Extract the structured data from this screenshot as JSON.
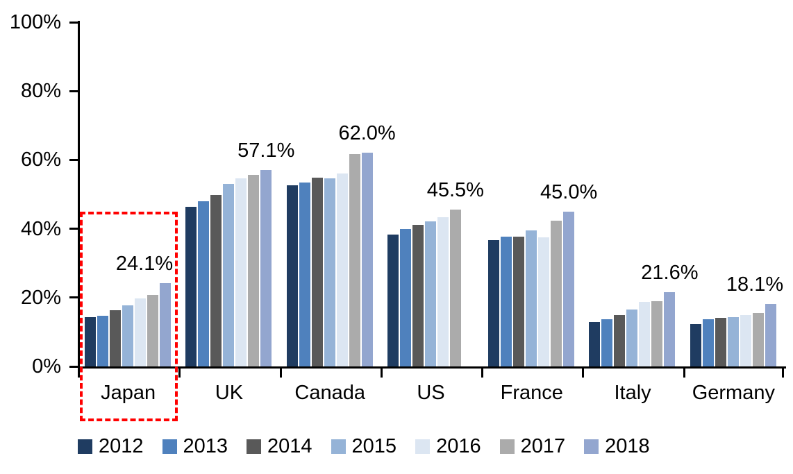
{
  "chart_data": {
    "type": "bar",
    "title": "",
    "xlabel": "",
    "ylabel": "",
    "categories": [
      "Japan",
      "UK",
      "Canada",
      "US",
      "France",
      "Italy",
      "Germany"
    ],
    "series": [
      {
        "name": "2012",
        "color": "#1F3C61",
        "values": [
          14.4,
          46.3,
          52.7,
          38.3,
          36.7,
          13.0,
          12.3
        ]
      },
      {
        "name": "2013",
        "color": "#4F81BD",
        "values": [
          14.7,
          48.0,
          53.4,
          40.0,
          37.8,
          13.8,
          13.8
        ]
      },
      {
        "name": "2014",
        "color": "#595959",
        "values": [
          16.4,
          49.8,
          54.9,
          41.1,
          37.8,
          15.0,
          14.1
        ]
      },
      {
        "name": "2015",
        "color": "#95B3D7",
        "values": [
          17.7,
          53.0,
          54.6,
          42.1,
          39.5,
          16.6,
          14.4
        ]
      },
      {
        "name": "2016",
        "color": "#DCE6F2",
        "values": [
          19.7,
          54.7,
          56.1,
          43.4,
          37.5,
          18.7,
          15.0
        ]
      },
      {
        "name": "2017",
        "color": "#ABABAB",
        "values": [
          20.8,
          55.6,
          61.7,
          45.5,
          42.3,
          18.9,
          15.6
        ]
      },
      {
        "name": "2018",
        "color": "#93A6CF",
        "values": [
          24.1,
          57.1,
          62.0,
          null,
          45.0,
          21.6,
          18.1
        ]
      }
    ],
    "callouts": [
      {
        "category": "Japan",
        "label": "24.1%"
      },
      {
        "category": "UK",
        "label": "57.1%"
      },
      {
        "category": "Canada",
        "label": "62.0%"
      },
      {
        "category": "US",
        "label": "45.5%"
      },
      {
        "category": "France",
        "label": "45.0%"
      },
      {
        "category": "Italy",
        "label": "21.6%"
      },
      {
        "category": "Germany",
        "label": "18.1%"
      }
    ],
    "y_axis": {
      "min": 0,
      "max": 100,
      "tick_step": 20,
      "tick_labels": [
        "0%",
        "20%",
        "40%",
        "60%",
        "80%",
        "100%"
      ]
    },
    "legend": {
      "position": "bottom",
      "entries": [
        "2012",
        "2013",
        "2014",
        "2015",
        "2016",
        "2017",
        "2018"
      ]
    },
    "grid": false,
    "highlight": {
      "shape": "dashed-box",
      "category": "Japan",
      "color": "#FF0000"
    }
  }
}
